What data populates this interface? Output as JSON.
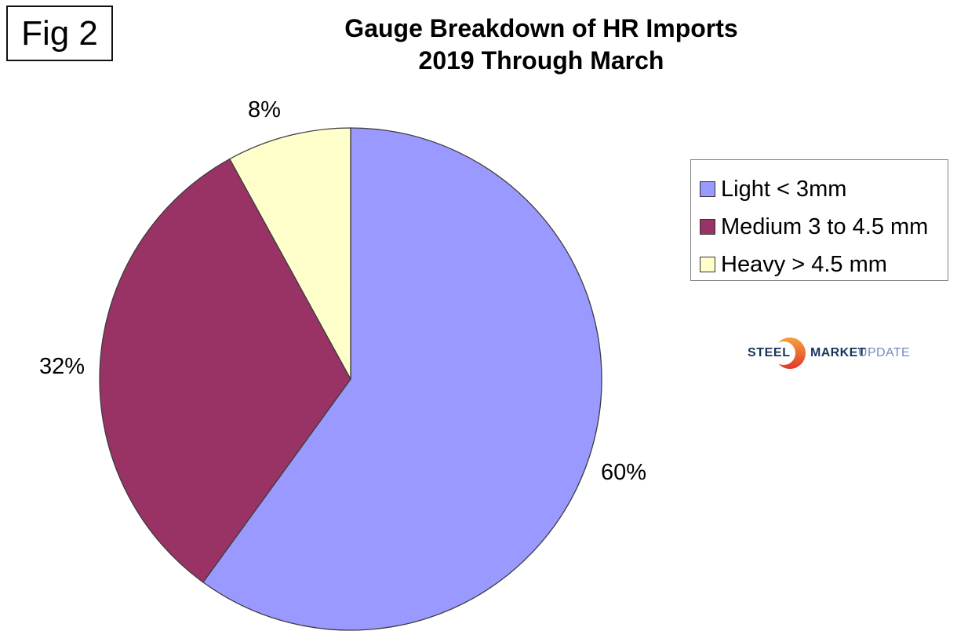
{
  "fig_label": "Fig 2",
  "title": {
    "line1": "Gauge Breakdown of HR Imports",
    "line2": "2019 Through March"
  },
  "chart_data": {
    "type": "pie",
    "title": "Gauge Breakdown of HR Imports 2019 Through March",
    "direction": "clockwise",
    "start_angle": "12 o'clock",
    "legend_position": "right",
    "outline_color": "#3D3D3D",
    "slices": [
      {
        "name": "Light < 3mm",
        "value": 60,
        "label": "60%",
        "color": "#9999FF",
        "slug": "light"
      },
      {
        "name": "Medium 3 to 4.5 mm",
        "value": 32,
        "label": "32%",
        "color": "#993366",
        "slug": "medium"
      },
      {
        "name": "Heavy > 4.5 mm",
        "value": 8,
        "label": "8%",
        "color": "#FFFFCC",
        "slug": "heavy"
      }
    ]
  },
  "logo": {
    "word1": "STEEL",
    "word2": "MARKET",
    "word3": "UPDATE",
    "navy": "#17365D",
    "light_blue": "#7389BD",
    "orange_top": "#F6A13C",
    "orange_bottom": "#E1382A"
  }
}
